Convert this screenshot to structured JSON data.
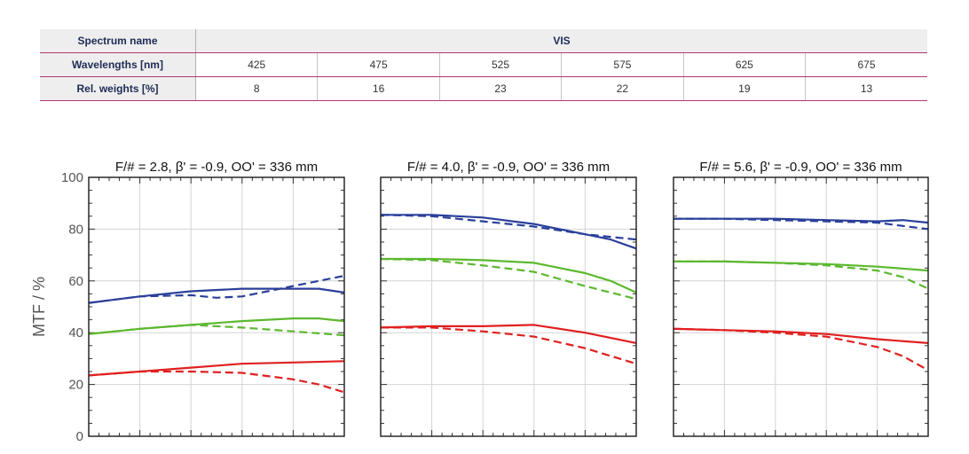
{
  "table": {
    "spectrum_label": "Spectrum name",
    "spectrum_value": "VIS",
    "wavelengths_label": "Wavelengths [nm]",
    "wavelengths": [
      "425",
      "475",
      "525",
      "575",
      "625",
      "675"
    ],
    "weights_label": "Rel. weights [%]",
    "weights": [
      "8",
      "16",
      "23",
      "22",
      "19",
      "13"
    ]
  },
  "chart_data": [
    {
      "type": "line",
      "title": "F/# = 2.8, β' = -0.9, OO' = 336 mm",
      "ylabel": "MTF / %",
      "yticks": [
        "0",
        "20",
        "40",
        "60",
        "80",
        "100"
      ],
      "ylim": [
        0,
        100
      ],
      "xlim": [
        0,
        1
      ],
      "grid": true,
      "colors": {
        "blue": "#2a3f9a",
        "green": "#5cb82e",
        "red": "#e02020"
      },
      "series": [
        {
          "color": "blue",
          "style": "solid",
          "x": [
            0,
            0.2,
            0.4,
            0.6,
            0.8,
            0.9,
            1
          ],
          "y": [
            51.5,
            54,
            56,
            57,
            57,
            57,
            55.5
          ]
        },
        {
          "color": "blue",
          "style": "dashed",
          "x": [
            0,
            0.2,
            0.4,
            0.5,
            0.6,
            0.7,
            0.8,
            0.9,
            1
          ],
          "y": [
            51.5,
            54,
            54.5,
            53.5,
            54,
            56,
            58,
            60,
            62
          ]
        },
        {
          "color": "green",
          "style": "solid",
          "x": [
            0,
            0.2,
            0.4,
            0.6,
            0.8,
            0.9,
            1
          ],
          "y": [
            39.5,
            41.5,
            43,
            44.5,
            45.5,
            45.5,
            44.5
          ]
        },
        {
          "color": "green",
          "style": "dashed",
          "x": [
            0,
            0.2,
            0.4,
            0.6,
            0.8,
            1
          ],
          "y": [
            39.5,
            41.5,
            43,
            42,
            40.5,
            39
          ]
        },
        {
          "color": "red",
          "style": "solid",
          "x": [
            0,
            0.2,
            0.4,
            0.6,
            0.8,
            1
          ],
          "y": [
            23.5,
            25,
            26.5,
            28,
            28.5,
            29
          ]
        },
        {
          "color": "red",
          "style": "dashed",
          "x": [
            0,
            0.2,
            0.4,
            0.6,
            0.8,
            0.9,
            1
          ],
          "y": [
            23.5,
            25,
            25,
            24.5,
            22,
            20,
            17
          ]
        }
      ]
    },
    {
      "type": "line",
      "title": "F/# = 4.0, β' = -0.9, OO' = 336 mm",
      "ylim": [
        0,
        100
      ],
      "xlim": [
        0,
        1
      ],
      "grid": true,
      "colors": {
        "blue": "#2a3f9a",
        "green": "#5cb82e",
        "red": "#e02020"
      },
      "series": [
        {
          "color": "blue",
          "style": "solid",
          "x": [
            0,
            0.2,
            0.4,
            0.6,
            0.8,
            0.9,
            1
          ],
          "y": [
            85.5,
            85.5,
            84.5,
            82,
            78,
            76,
            72.5
          ]
        },
        {
          "color": "blue",
          "style": "dashed",
          "x": [
            0,
            0.2,
            0.4,
            0.6,
            0.8,
            1
          ],
          "y": [
            85.5,
            85,
            83,
            81,
            78,
            76
          ]
        },
        {
          "color": "green",
          "style": "solid",
          "x": [
            0,
            0.2,
            0.4,
            0.6,
            0.8,
            0.9,
            1
          ],
          "y": [
            68.5,
            68.5,
            68,
            67,
            63,
            60,
            55.5
          ]
        },
        {
          "color": "green",
          "style": "dashed",
          "x": [
            0,
            0.2,
            0.4,
            0.6,
            0.8,
            1
          ],
          "y": [
            68.5,
            68,
            66,
            63.5,
            58,
            53
          ]
        },
        {
          "color": "red",
          "style": "solid",
          "x": [
            0,
            0.2,
            0.4,
            0.6,
            0.8,
            1
          ],
          "y": [
            42,
            42.5,
            42.5,
            43,
            40,
            36
          ]
        },
        {
          "color": "red",
          "style": "dashed",
          "x": [
            0,
            0.2,
            0.4,
            0.6,
            0.8,
            1
          ],
          "y": [
            42,
            42,
            40.5,
            38.5,
            34,
            28
          ]
        }
      ]
    },
    {
      "type": "line",
      "title": "F/# = 5.6, β' = -0.9, OO' = 336 mm",
      "ylim": [
        0,
        100
      ],
      "xlim": [
        0,
        1
      ],
      "grid": true,
      "colors": {
        "blue": "#2a3f9a",
        "green": "#5cb82e",
        "red": "#e02020"
      },
      "series": [
        {
          "color": "blue",
          "style": "solid",
          "x": [
            0,
            0.2,
            0.4,
            0.6,
            0.8,
            0.9,
            1
          ],
          "y": [
            84,
            84,
            84,
            83.5,
            83,
            83.5,
            82.5
          ]
        },
        {
          "color": "blue",
          "style": "dashed",
          "x": [
            0,
            0.2,
            0.4,
            0.6,
            0.8,
            1
          ],
          "y": [
            84,
            84,
            83.5,
            83,
            82.5,
            80
          ]
        },
        {
          "color": "green",
          "style": "solid",
          "x": [
            0,
            0.2,
            0.4,
            0.6,
            0.8,
            1
          ],
          "y": [
            67.5,
            67.5,
            67,
            66.5,
            65.5,
            64
          ]
        },
        {
          "color": "green",
          "style": "dashed",
          "x": [
            0,
            0.2,
            0.4,
            0.6,
            0.8,
            0.9,
            1
          ],
          "y": [
            67.5,
            67.5,
            67,
            66,
            64,
            61.5,
            57
          ]
        },
        {
          "color": "red",
          "style": "solid",
          "x": [
            0,
            0.2,
            0.4,
            0.6,
            0.8,
            1
          ],
          "y": [
            41.5,
            41,
            40.5,
            39.5,
            37.5,
            36
          ]
        },
        {
          "color": "red",
          "style": "dashed",
          "x": [
            0,
            0.2,
            0.4,
            0.6,
            0.8,
            0.9,
            1
          ],
          "y": [
            41.5,
            41,
            40,
            38.5,
            34.5,
            31,
            25.5
          ]
        }
      ]
    }
  ]
}
